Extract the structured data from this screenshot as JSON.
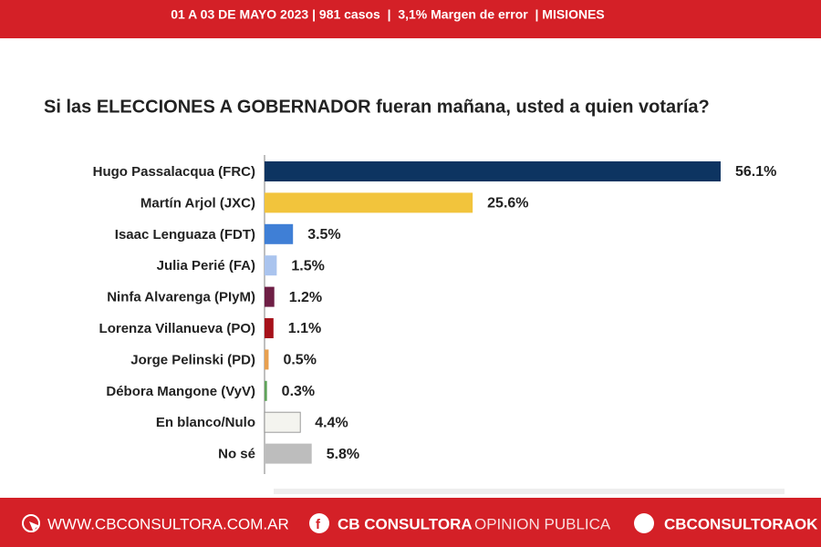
{
  "header": {
    "text": "01 A 03 DE MAYO 2023 | 981 casos  |  3,1% Margen de error  | MISIONES"
  },
  "chart_data": {
    "type": "hbar",
    "title": "Si las ELECCIONES A GOBERNADOR fueran mañana, usted a quien votaría?",
    "categories": [
      "Hugo Passalacqua (FRC)",
      "Martín Arjol (JXC)",
      "Isaac Lenguaza (FDT)",
      "Julia Perié (FA)",
      "Ninfa Alvarenga (PIyM)",
      "Lorenza Villanueva (PO)",
      "Jorge Pelinski (PD)",
      "Débora Mangone (VyV)",
      "En blanco/Nulo",
      "No sé"
    ],
    "values": [
      56.1,
      25.6,
      3.5,
      1.5,
      1.2,
      1.1,
      0.5,
      0.3,
      4.4,
      5.8
    ],
    "value_labels": [
      "56.1%",
      "25.6%",
      "3.5%",
      "1.5%",
      "1.2%",
      "1.1%",
      "0.5%",
      "0.3%",
      "4.4%",
      "5.8%"
    ],
    "colors": [
      "#0d3461",
      "#f2c43c",
      "#3f7fd6",
      "#aac4ee",
      "#6e1f45",
      "#a6121b",
      "#e8a050",
      "#5fa35a",
      "#f4f4ef",
      "#bdbdbd"
    ]
  },
  "footer": {
    "website": "WWW.CBCONSULTORA.COM.AR",
    "facebook_bold": "CB CONSULTORA",
    "facebook_light": "OPINION PUBLICA",
    "twitter": "CBCONSULTORAOK"
  }
}
